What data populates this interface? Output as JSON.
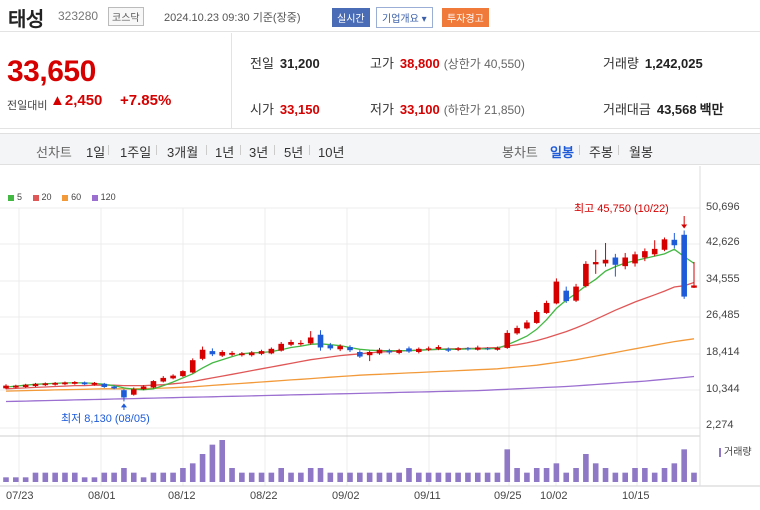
{
  "header": {
    "name": "태성",
    "code": "323280",
    "market": "코스닥",
    "timestamp": "2024.10.23 09:30 기준(장중)",
    "realtime_badge": "실시간",
    "company_info_button": "기업개요 ▾",
    "warning_badge": "투자경고"
  },
  "price": {
    "current": "33,650",
    "change_label": "전일대비",
    "change_value": "▲2,450",
    "change_percent": "+7.85%"
  },
  "stats": {
    "prev_close_label": "전일",
    "prev_close": "31,200",
    "high_label": "고가",
    "high": "38,800",
    "upper_limit": "(상한가 40,550)",
    "volume_label": "거래량",
    "volume": "1,242,025",
    "open_label": "시가",
    "open": "33,150",
    "low_label": "저가",
    "low": "33,100",
    "lower_limit": "(하한가 21,850)",
    "value_label": "거래대금",
    "value": "43,568",
    "value_unit": "백만"
  },
  "tabs": {
    "line_chart": "선차트",
    "periods": [
      "1일",
      "1주일",
      "3개월",
      "1년",
      "3년",
      "5년",
      "10년"
    ],
    "candle_chart": "봉차트",
    "candles": [
      "일봉",
      "주봉",
      "월봉"
    ],
    "active_candle": "일봉"
  },
  "colors": {
    "up": "#d60000",
    "down": "#1e5bd8",
    "ma5": "#43b843",
    "ma20": "#e05757",
    "ma60": "#f29a3a",
    "ma120": "#9b6fd0",
    "volume": "#8f78c6"
  },
  "chart_data": {
    "type": "candlestick",
    "legend": [
      "5",
      "20",
      "60",
      "120"
    ],
    "y_ticks": [
      "50,696",
      "42,626",
      "34,555",
      "26,485",
      "18,414",
      "10,344",
      "2,274"
    ],
    "ylim": [
      2274,
      50696
    ],
    "x_ticks": [
      "07/23",
      "08/01",
      "08/12",
      "08/22",
      "09/02",
      "09/11",
      "09/25",
      "10/02",
      "10/15"
    ],
    "high_annotation": "최고 45,750 (10/22)",
    "low_annotation": "최저 8,130 (08/05)",
    "volume_label": "거래량",
    "candles": [
      {
        "o": 11000,
        "c": 11600,
        "h": 11900,
        "l": 10800
      },
      {
        "o": 11200,
        "c": 11600,
        "h": 11800,
        "l": 11000
      },
      {
        "o": 11300,
        "c": 11800,
        "h": 12000,
        "l": 11100
      },
      {
        "o": 11500,
        "c": 12000,
        "h": 12200,
        "l": 11300
      },
      {
        "o": 11700,
        "c": 12100,
        "h": 12300,
        "l": 11500
      },
      {
        "o": 11800,
        "c": 12200,
        "h": 12400,
        "l": 11600
      },
      {
        "o": 11900,
        "c": 12300,
        "h": 12500,
        "l": 11700
      },
      {
        "o": 12000,
        "c": 12400,
        "h": 12600,
        "l": 11800
      },
      {
        "o": 12300,
        "c": 11900,
        "h": 12500,
        "l": 11700
      },
      {
        "o": 11800,
        "c": 12200,
        "h": 12400,
        "l": 11600
      },
      {
        "o": 12000,
        "c": 11300,
        "h": 12200,
        "l": 11100
      },
      {
        "o": 11400,
        "c": 11000,
        "h": 11600,
        "l": 10800
      },
      {
        "o": 10600,
        "c": 9000,
        "h": 10800,
        "l": 8130
      },
      {
        "o": 9600,
        "c": 10800,
        "h": 11200,
        "l": 9400
      },
      {
        "o": 10800,
        "c": 11400,
        "h": 11700,
        "l": 10600
      },
      {
        "o": 11200,
        "c": 12600,
        "h": 12800,
        "l": 11000
      },
      {
        "o": 12500,
        "c": 13300,
        "h": 13700,
        "l": 12300
      },
      {
        "o": 13200,
        "c": 13800,
        "h": 14100,
        "l": 13000
      },
      {
        "o": 13700,
        "c": 14800,
        "h": 15000,
        "l": 13500
      },
      {
        "o": 14500,
        "c": 17200,
        "h": 17600,
        "l": 14300
      },
      {
        "o": 17500,
        "c": 19500,
        "h": 20200,
        "l": 17200
      },
      {
        "o": 19200,
        "c": 18500,
        "h": 19800,
        "l": 18100
      },
      {
        "o": 18200,
        "c": 19000,
        "h": 19400,
        "l": 17900
      },
      {
        "o": 18400,
        "c": 18800,
        "h": 19200,
        "l": 18100
      },
      {
        "o": 18300,
        "c": 18700,
        "h": 19000,
        "l": 18000
      },
      {
        "o": 18300,
        "c": 18900,
        "h": 19200,
        "l": 18000
      },
      {
        "o": 18600,
        "c": 19200,
        "h": 19500,
        "l": 18300
      },
      {
        "o": 18700,
        "c": 19700,
        "h": 20000,
        "l": 18500
      },
      {
        "o": 19300,
        "c": 20800,
        "h": 21200,
        "l": 19100
      },
      {
        "o": 20600,
        "c": 21200,
        "h": 21700,
        "l": 20300
      },
      {
        "o": 20700,
        "c": 21000,
        "h": 21600,
        "l": 20400
      },
      {
        "o": 20900,
        "c": 22200,
        "h": 23600,
        "l": 20600
      },
      {
        "o": 22800,
        "c": 20000,
        "h": 23800,
        "l": 19300
      },
      {
        "o": 20500,
        "c": 19800,
        "h": 21000,
        "l": 19400
      },
      {
        "o": 19600,
        "c": 20300,
        "h": 20700,
        "l": 19200
      },
      {
        "o": 20100,
        "c": 19400,
        "h": 20500,
        "l": 19000
      },
      {
        "o": 19000,
        "c": 18000,
        "h": 19400,
        "l": 17700
      },
      {
        "o": 18300,
        "c": 19000,
        "h": 19300,
        "l": 17000
      },
      {
        "o": 18700,
        "c": 19500,
        "h": 19900,
        "l": 18400
      },
      {
        "o": 19300,
        "c": 18900,
        "h": 19700,
        "l": 18500
      },
      {
        "o": 18800,
        "c": 19400,
        "h": 19700,
        "l": 18500
      },
      {
        "o": 19800,
        "c": 19100,
        "h": 20200,
        "l": 18800
      },
      {
        "o": 19000,
        "c": 19700,
        "h": 20000,
        "l": 18700
      },
      {
        "o": 19500,
        "c": 19800,
        "h": 20200,
        "l": 19200
      },
      {
        "o": 19700,
        "c": 20100,
        "h": 20500,
        "l": 19400
      },
      {
        "o": 19600,
        "c": 19300,
        "h": 20000,
        "l": 19000
      },
      {
        "o": 19500,
        "c": 19800,
        "h": 20100,
        "l": 19200
      },
      {
        "o": 19800,
        "c": 19600,
        "h": 20100,
        "l": 19300
      },
      {
        "o": 19500,
        "c": 20000,
        "h": 20400,
        "l": 19300
      },
      {
        "o": 19800,
        "c": 19600,
        "h": 20100,
        "l": 19400
      },
      {
        "o": 19500,
        "c": 19900,
        "h": 20200,
        "l": 19300
      },
      {
        "o": 19900,
        "c": 23200,
        "h": 23800,
        "l": 19700
      },
      {
        "o": 23100,
        "c": 24300,
        "h": 24800,
        "l": 22800
      },
      {
        "o": 24200,
        "c": 25500,
        "h": 26000,
        "l": 24000
      },
      {
        "o": 25400,
        "c": 27800,
        "h": 28200,
        "l": 25200
      },
      {
        "o": 27600,
        "c": 29800,
        "h": 30300,
        "l": 27400
      },
      {
        "o": 29700,
        "c": 34500,
        "h": 35200,
        "l": 29500
      },
      {
        "o": 32500,
        "c": 30200,
        "h": 33400,
        "l": 29800
      },
      {
        "o": 30300,
        "c": 33400,
        "h": 34000,
        "l": 30000
      },
      {
        "o": 33500,
        "c": 38400,
        "h": 39000,
        "l": 33200
      },
      {
        "o": 38300,
        "c": 38800,
        "h": 41500,
        "l": 36200
      },
      {
        "o": 38500,
        "c": 39300,
        "h": 43000,
        "l": 37800
      },
      {
        "o": 39800,
        "c": 38200,
        "h": 40600,
        "l": 35600
      },
      {
        "o": 37900,
        "c": 39800,
        "h": 40800,
        "l": 37200
      },
      {
        "o": 38500,
        "c": 40500,
        "h": 41100,
        "l": 37800
      },
      {
        "o": 39800,
        "c": 41200,
        "h": 41800,
        "l": 39000
      },
      {
        "o": 40500,
        "c": 41700,
        "h": 43600,
        "l": 40100
      },
      {
        "o": 41500,
        "c": 43800,
        "h": 44200,
        "l": 41200
      },
      {
        "o": 43700,
        "c": 42500,
        "h": 45200,
        "l": 41800
      },
      {
        "o": 44800,
        "c": 31200,
        "h": 45750,
        "l": 30700
      },
      {
        "o": 33150,
        "c": 33650,
        "h": 38800,
        "l": 33100
      }
    ],
    "ma5": [
      11300,
      11500,
      11700,
      11900,
      12000,
      12100,
      12200,
      12200,
      12200,
      12100,
      11900,
      11600,
      11100,
      10800,
      10700,
      10900,
      11600,
      12400,
      13300,
      14200,
      15500,
      16600,
      17300,
      18000,
      18600,
      18800,
      18900,
      19100,
      19500,
      20000,
      20300,
      20700,
      20800,
      20600,
      20400,
      20000,
      19600,
      19400,
      19300,
      19300,
      19300,
      19300,
      19400,
      19500,
      19600,
      19600,
      19600,
      19700,
      19700,
      19700,
      19800,
      20600,
      21500,
      22500,
      24000,
      26100,
      28600,
      30400,
      31900,
      33600,
      35000,
      36800,
      37800,
      38600,
      39100,
      39600,
      40100,
      40600,
      41600,
      40000,
      38500
    ],
    "ma20": [
      10900,
      11000,
      11100,
      11200,
      11300,
      11400,
      11500,
      11600,
      11600,
      11700,
      11700,
      11700,
      11600,
      11600,
      11600,
      11700,
      11800,
      12000,
      12200,
      12500,
      12900,
      13300,
      13700,
      14100,
      14500,
      14900,
      15300,
      15700,
      16100,
      16500,
      16900,
      17300,
      17600,
      17900,
      18200,
      18400,
      18600,
      18800,
      19000,
      19100,
      19200,
      19300,
      19400,
      19500,
      19600,
      19700,
      19700,
      19800,
      19800,
      19900,
      20000,
      20300,
      20600,
      21000,
      21500,
      22100,
      22800,
      23500,
      24300,
      25200,
      26200,
      27200,
      28200,
      29100,
      30000,
      30800,
      31600,
      32400,
      33300,
      33600,
      34300
    ],
    "ma60": [
      10400,
      10450,
      10500,
      10550,
      10600,
      10650,
      10700,
      10750,
      10800,
      10850,
      10900,
      10900,
      10900,
      10900,
      10950,
      11000,
      11050,
      11150,
      11250,
      11350,
      11500,
      11650,
      11800,
      11950,
      12100,
      12250,
      12400,
      12550,
      12700,
      12850,
      13000,
      13150,
      13300,
      13450,
      13600,
      13750,
      13900,
      14000,
      14100,
      14200,
      14300,
      14400,
      14500,
      14600,
      14700,
      14800,
      14900,
      15000,
      15100,
      15200,
      15300,
      15500,
      15700,
      15900,
      16100,
      16400,
      16700,
      17000,
      17300,
      17700,
      18100,
      18500,
      18900,
      19300,
      19700,
      20100,
      20500,
      20900,
      21300,
      21600,
      21900
    ],
    "ma120": [
      8100,
      8150,
      8200,
      8250,
      8300,
      8350,
      8400,
      8450,
      8500,
      8550,
      8600,
      8650,
      8700,
      8750,
      8800,
      8850,
      8900,
      8950,
      9000,
      9050,
      9100,
      9150,
      9200,
      9250,
      9300,
      9350,
      9400,
      9450,
      9500,
      9550,
      9600,
      9650,
      9700,
      9750,
      9800,
      9850,
      9900,
      9950,
      10000,
      10050,
      10100,
      10150,
      10200,
      10250,
      10300,
      10350,
      10400,
      10450,
      10500,
      10600,
      10700,
      10800,
      10900,
      11000,
      11100,
      11200,
      11300,
      11400,
      11550,
      11700,
      11850,
      12000,
      12150,
      12300,
      12450,
      12600,
      12800,
      13000,
      13200,
      13400,
      13600
    ],
    "volumes": [
      1,
      1,
      1,
      2,
      2,
      2,
      2,
      2,
      1,
      1,
      2,
      2,
      3,
      2,
      1,
      2,
      2,
      2,
      3,
      4,
      6,
      8,
      9,
      3,
      2,
      2,
      2,
      2,
      3,
      2,
      2,
      3,
      3,
      2,
      2,
      2,
      2,
      2,
      2,
      2,
      2,
      3,
      2,
      2,
      2,
      2,
      2,
      2,
      2,
      2,
      2,
      7,
      3,
      2,
      3,
      3,
      4,
      2,
      3,
      6,
      4,
      3,
      2,
      2,
      3,
      3,
      2,
      3,
      4,
      7,
      2
    ]
  }
}
